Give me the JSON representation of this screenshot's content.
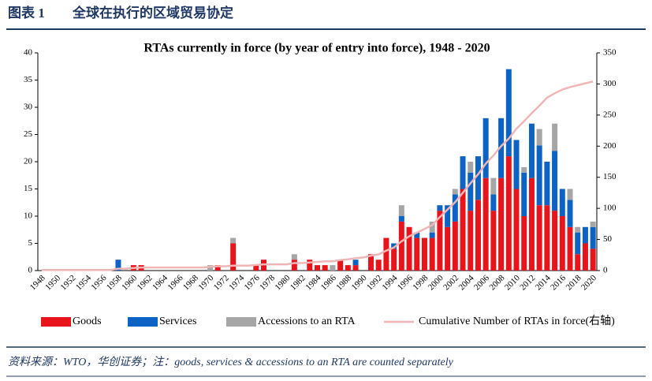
{
  "figure_label": "图表 1",
  "figure_title": "全球在执行的区域贸易协定",
  "source": "资料来源：WTO，华创证券；注：goods, services & accessions to an RTA are counted separately",
  "chart_data": {
    "type": "bar",
    "title": "RTAs currently in force (by year of entry into force), 1948 - 2020",
    "categories": [
      "1948",
      null,
      "1950",
      null,
      "1952",
      null,
      "1954",
      null,
      "1956",
      null,
      "1958",
      null,
      "1960",
      null,
      "1962",
      null,
      "1964",
      null,
      "1966",
      null,
      "1968",
      null,
      "1970",
      null,
      "1972",
      null,
      "1974",
      null,
      "1976",
      null,
      "1978",
      null,
      "1980",
      null,
      "1982",
      null,
      "1984",
      null,
      "1986",
      null,
      "1988",
      null,
      "1990",
      null,
      "1992",
      null,
      "1994",
      null,
      "1996",
      null,
      "1998",
      null,
      "2000",
      null,
      "2002",
      null,
      "2004",
      null,
      "2006",
      null,
      "2008",
      null,
      "2010",
      null,
      "2012",
      null,
      "2014",
      null,
      "2016",
      null,
      "2018",
      null,
      "2020"
    ],
    "series": [
      {
        "name": "Goods",
        "color": "#e8141c",
        "values": [
          0,
          0,
          0,
          0,
          0,
          0,
          0,
          0,
          0,
          0,
          0,
          0,
          1,
          1,
          0,
          0,
          0,
          0,
          0,
          0,
          0,
          0,
          0,
          1,
          0,
          5,
          0,
          0,
          1,
          2,
          0,
          0,
          0,
          2,
          0,
          2,
          1,
          1,
          0,
          2,
          1,
          1,
          0,
          3,
          2,
          6,
          4,
          9,
          8,
          6,
          6,
          6,
          11,
          8,
          9,
          15,
          11,
          13,
          17,
          11,
          17,
          21,
          15,
          10,
          17,
          12,
          12,
          11,
          10,
          8,
          3,
          5,
          4
        ]
      },
      {
        "name": "Services",
        "color": "#0c63c3",
        "values": [
          0,
          0,
          0,
          0,
          0,
          0,
          0,
          0,
          0,
          0,
          2,
          0,
          0,
          0,
          0,
          0,
          0,
          0,
          0,
          0,
          0,
          0,
          0,
          0,
          0,
          0,
          0,
          0,
          0,
          0,
          0,
          0,
          0,
          0,
          0,
          0,
          0,
          0,
          0,
          0,
          0,
          1,
          0,
          0,
          0,
          0,
          1,
          1,
          0,
          1,
          0,
          1,
          1,
          4,
          5,
          6,
          7,
          8,
          11,
          3,
          11,
          16,
          9,
          8,
          10,
          11,
          8,
          11,
          5,
          5,
          4,
          3,
          4
        ]
      },
      {
        "name": "Accessions to an RTA",
        "color": "#a6a6a6",
        "values": [
          0,
          0,
          0,
          0,
          0,
          0,
          0,
          0,
          0,
          0,
          0,
          0,
          0,
          0,
          0,
          0,
          0,
          0,
          0,
          0,
          0,
          0,
          1,
          0,
          0,
          1,
          0,
          0,
          0,
          0,
          0,
          0,
          0,
          1,
          0,
          0,
          0,
          0,
          1,
          0,
          0,
          0,
          0,
          0,
          0,
          0,
          0,
          2,
          0,
          0,
          0,
          2,
          0,
          0,
          1,
          0,
          2,
          0,
          0,
          3,
          0,
          0,
          0,
          1,
          0,
          3,
          0,
          5,
          0,
          2,
          1,
          0,
          1
        ]
      },
      {
        "name": "Cumulative Number of RTAs in force(右轴)",
        "color": "#f0b6b6",
        "type": "line",
        "axis": "y2",
        "values": [
          1,
          1,
          1,
          1,
          1,
          1,
          1,
          1,
          1,
          1,
          3,
          3,
          4,
          5,
          5,
          5,
          5,
          5,
          5,
          5,
          5,
          5,
          6,
          7,
          7,
          8,
          8,
          8,
          9,
          10,
          10,
          10,
          10,
          12,
          12,
          13,
          14,
          15,
          15,
          17,
          18,
          20,
          21,
          24,
          26,
          32,
          37,
          47,
          55,
          61,
          67,
          73,
          86,
          98,
          110,
          125,
          140,
          155,
          172,
          185,
          200,
          212,
          228,
          240,
          253,
          265,
          278,
          285,
          291,
          295,
          298,
          301,
          304
        ]
      }
    ],
    "stacked": true,
    "ylim": [
      0,
      40
    ],
    "yticks": [
      0,
      5,
      10,
      15,
      20,
      25,
      30,
      35,
      40
    ],
    "y2lim": [
      0,
      350
    ],
    "y2ticks": [
      0,
      50,
      100,
      150,
      200,
      250,
      300,
      350
    ],
    "grid": false,
    "legend": "bottom"
  }
}
